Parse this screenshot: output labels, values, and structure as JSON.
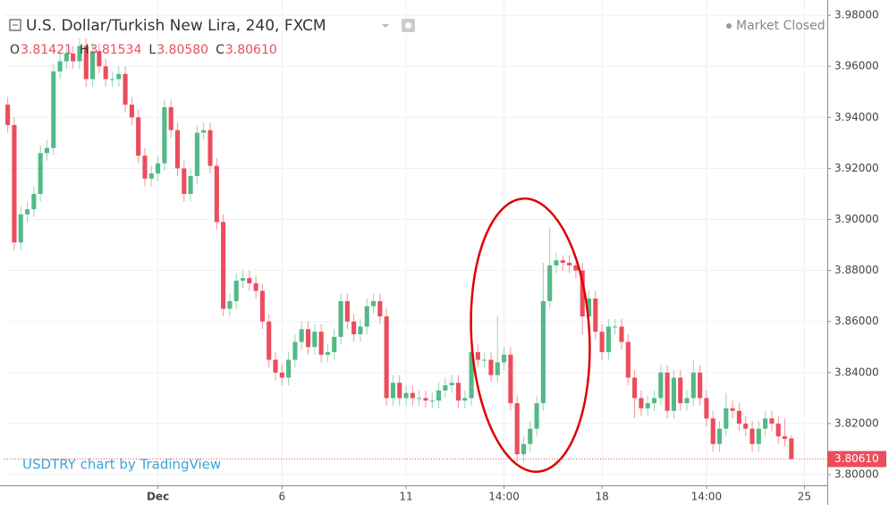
{
  "chart_data": {
    "type": "candlestick",
    "title": "U.S. Dollar/Turkish New Lira, 240, FXCM",
    "ohlc_letters": [
      "O",
      "H",
      "L",
      "C"
    ],
    "last_values": [
      "3.81421",
      "3.81534",
      "3.80580",
      "3.80610"
    ],
    "status": "Market Closed",
    "watermark": "USDTRY chart by TradingView",
    "up_color": "#53b987",
    "down_color": "#eb4d5c",
    "grid": true,
    "xlim": [
      -0.5,
      125.5
    ],
    "ylim": [
      3.7958,
      3.986
    ],
    "xticks": [
      {
        "value": 23,
        "label": "Dec"
      },
      {
        "value": 42,
        "label": "6"
      },
      {
        "value": 61,
        "label": "11"
      },
      {
        "value": 76,
        "label": "14:00"
      },
      {
        "value": 91,
        "label": "18"
      },
      {
        "value": 107,
        "label": "14:00"
      },
      {
        "value": 122,
        "label": "25"
      }
    ],
    "yticks": [
      {
        "value": 3.8,
        "label": "3.80000"
      },
      {
        "value": 3.82,
        "label": "3.82000"
      },
      {
        "value": 3.84,
        "label": "3.84000"
      },
      {
        "value": 3.86,
        "label": "3.86000"
      },
      {
        "value": 3.88,
        "label": "3.88000"
      },
      {
        "value": 3.9,
        "label": "3.90000"
      },
      {
        "value": 3.92,
        "label": "3.92000"
      },
      {
        "value": 3.94,
        "label": "3.94000"
      },
      {
        "value": 3.96,
        "label": "3.96000"
      },
      {
        "value": 3.98,
        "label": "3.98000"
      }
    ],
    "open": [
      3.945,
      3.937,
      3.891,
      3.902,
      3.904,
      3.91,
      3.926,
      3.928,
      3.958,
      3.962,
      3.965,
      3.962,
      3.968,
      3.955,
      3.966,
      3.96,
      3.955,
      3.955,
      3.957,
      3.945,
      3.94,
      3.925,
      3.916,
      3.918,
      3.922,
      3.944,
      3.935,
      3.92,
      3.91,
      3.917,
      3.934,
      3.935,
      3.921,
      3.899,
      3.865,
      3.868,
      3.876,
      3.877,
      3.875,
      3.872,
      3.86,
      3.845,
      3.84,
      3.838,
      3.845,
      3.852,
      3.857,
      3.85,
      3.856,
      3.847,
      3.848,
      3.854,
      3.868,
      3.86,
      3.855,
      3.858,
      3.866,
      3.868,
      3.862,
      3.83,
      3.836,
      3.83,
      3.832,
      3.83,
      3.83,
      3.829,
      3.829,
      3.833,
      3.835,
      3.836,
      3.829,
      3.83,
      3.848,
      3.845,
      3.845,
      3.839,
      3.844,
      3.847,
      3.828,
      3.808,
      3.812,
      3.818,
      3.828,
      3.868,
      3.882,
      3.884,
      3.883,
      3.882,
      3.88,
      3.862,
      3.869,
      3.856,
      3.848,
      3.858,
      3.858,
      3.852,
      3.838,
      3.83,
      3.826,
      3.828,
      3.83,
      3.84,
      3.825,
      3.838,
      3.828,
      3.83,
      3.84,
      3.83,
      3.822,
      3.812,
      3.818,
      3.826,
      3.825,
      3.82,
      3.818,
      3.812,
      3.818,
      3.822,
      3.82,
      3.815,
      3.81421
    ],
    "high": [
      3.948,
      3.94,
      3.905,
      3.907,
      3.913,
      3.929,
      3.931,
      3.961,
      3.965,
      3.968,
      3.968,
      3.971,
      3.971,
      3.969,
      3.969,
      3.963,
      3.958,
      3.96,
      3.96,
      3.948,
      3.943,
      3.928,
      3.921,
      3.925,
      3.947,
      3.947,
      3.938,
      3.923,
      3.92,
      3.937,
      3.938,
      3.938,
      3.924,
      3.902,
      3.871,
      3.879,
      3.88,
      3.88,
      3.878,
      3.875,
      3.863,
      3.848,
      3.843,
      3.848,
      3.855,
      3.86,
      3.86,
      3.859,
      3.859,
      3.851,
      3.857,
      3.871,
      3.871,
      3.863,
      3.861,
      3.869,
      3.871,
      3.871,
      3.865,
      3.839,
      3.839,
      3.835,
      3.835,
      3.833,
      3.833,
      3.832,
      3.836,
      3.838,
      3.839,
      3.839,
      3.833,
      3.851,
      3.851,
      3.848,
      3.848,
      3.862,
      3.85,
      3.85,
      3.831,
      3.815,
      3.821,
      3.831,
      3.883,
      3.897,
      3.887,
      3.886,
      3.886,
      3.883,
      3.883,
      3.872,
      3.872,
      3.859,
      3.861,
      3.861,
      3.861,
      3.855,
      3.841,
      3.833,
      3.831,
      3.833,
      3.843,
      3.843,
      3.841,
      3.841,
      3.833,
      3.845,
      3.843,
      3.833,
      3.825,
      3.821,
      3.832,
      3.829,
      3.828,
      3.823,
      3.821,
      3.821,
      3.825,
      3.825,
      3.823,
      3.822,
      3.81534
    ],
    "low": [
      3.934,
      3.888,
      3.888,
      3.899,
      3.901,
      3.907,
      3.923,
      3.925,
      3.955,
      3.959,
      3.959,
      3.959,
      3.952,
      3.952,
      3.957,
      3.952,
      3.952,
      3.952,
      3.942,
      3.937,
      3.922,
      3.913,
      3.913,
      3.915,
      3.919,
      3.932,
      3.917,
      3.907,
      3.907,
      3.914,
      3.931,
      3.918,
      3.896,
      3.862,
      3.862,
      3.865,
      3.873,
      3.872,
      3.869,
      3.857,
      3.842,
      3.837,
      3.835,
      3.835,
      3.842,
      3.849,
      3.847,
      3.847,
      3.844,
      3.844,
      3.845,
      3.851,
      3.857,
      3.852,
      3.852,
      3.855,
      3.863,
      3.859,
      3.827,
      3.827,
      3.827,
      3.827,
      3.827,
      3.827,
      3.826,
      3.826,
      3.826,
      3.83,
      3.832,
      3.826,
      3.826,
      3.827,
      3.842,
      3.842,
      3.836,
      3.836,
      3.841,
      3.825,
      3.805,
      3.805,
      3.809,
      3.815,
      3.825,
      3.865,
      3.879,
      3.88,
      3.879,
      3.877,
      3.855,
      3.859,
      3.853,
      3.845,
      3.845,
      3.855,
      3.849,
      3.835,
      3.822,
      3.823,
      3.823,
      3.825,
      3.827,
      3.822,
      3.822,
      3.825,
      3.825,
      3.827,
      3.827,
      3.819,
      3.809,
      3.809,
      3.815,
      3.822,
      3.817,
      3.815,
      3.809,
      3.809,
      3.815,
      3.817,
      3.812,
      3.811,
      3.8058
    ],
    "close": [
      3.937,
      3.891,
      3.902,
      3.904,
      3.91,
      3.926,
      3.928,
      3.958,
      3.962,
      3.965,
      3.962,
      3.968,
      3.955,
      3.966,
      3.96,
      3.955,
      3.955,
      3.957,
      3.945,
      3.94,
      3.925,
      3.916,
      3.918,
      3.922,
      3.944,
      3.935,
      3.92,
      3.91,
      3.917,
      3.934,
      3.935,
      3.921,
      3.899,
      3.865,
      3.868,
      3.876,
      3.877,
      3.875,
      3.872,
      3.86,
      3.845,
      3.84,
      3.838,
      3.845,
      3.852,
      3.857,
      3.85,
      3.856,
      3.847,
      3.848,
      3.854,
      3.868,
      3.86,
      3.855,
      3.858,
      3.866,
      3.868,
      3.862,
      3.83,
      3.836,
      3.83,
      3.832,
      3.83,
      3.83,
      3.829,
      3.829,
      3.833,
      3.835,
      3.836,
      3.829,
      3.83,
      3.848,
      3.845,
      3.845,
      3.839,
      3.844,
      3.847,
      3.828,
      3.808,
      3.812,
      3.818,
      3.828,
      3.868,
      3.882,
      3.884,
      3.883,
      3.882,
      3.88,
      3.862,
      3.869,
      3.856,
      3.848,
      3.858,
      3.858,
      3.852,
      3.838,
      3.83,
      3.826,
      3.828,
      3.83,
      3.84,
      3.825,
      3.838,
      3.828,
      3.83,
      3.84,
      3.83,
      3.822,
      3.812,
      3.818,
      3.826,
      3.825,
      3.82,
      3.818,
      3.812,
      3.818,
      3.822,
      3.82,
      3.815,
      3.814,
      3.8061
    ]
  }
}
